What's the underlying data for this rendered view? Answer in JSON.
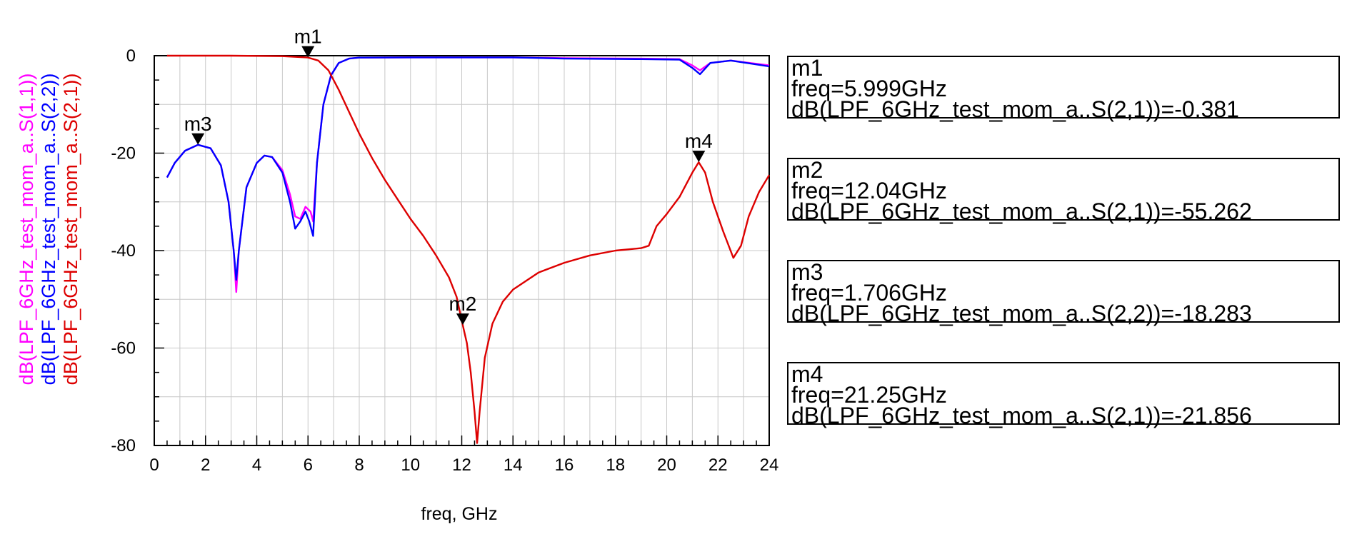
{
  "chart_data": {
    "type": "line",
    "xlabel": "freq, GHz",
    "ylabel": "",
    "xlim": [
      0,
      24
    ],
    "ylim": [
      -80,
      0
    ],
    "x_ticks": [
      0,
      2,
      4,
      6,
      8,
      10,
      12,
      14,
      16,
      18,
      20,
      22,
      24
    ],
    "y_ticks": [
      0,
      -20,
      -40,
      -60,
      -80
    ],
    "grid": true,
    "series": [
      {
        "name": "dB(LPF_6GHz_test_mom_a..S(1,1))",
        "color": "#ff00ff",
        "points": [
          [
            0.5,
            -25
          ],
          [
            0.8,
            -22
          ],
          [
            1.2,
            -19.5
          ],
          [
            1.706,
            -18.3
          ],
          [
            2.2,
            -19
          ],
          [
            2.6,
            -22.5
          ],
          [
            2.9,
            -30
          ],
          [
            3.1,
            -40
          ],
          [
            3.2,
            -48.5
          ],
          [
            3.3,
            -40
          ],
          [
            3.6,
            -27
          ],
          [
            4.0,
            -22
          ],
          [
            4.3,
            -20.5
          ],
          [
            4.6,
            -20.8
          ],
          [
            5.0,
            -23.5
          ],
          [
            5.3,
            -28.5
          ],
          [
            5.5,
            -33
          ],
          [
            5.7,
            -33.5
          ],
          [
            5.9,
            -31
          ],
          [
            6.1,
            -32
          ],
          [
            6.2,
            -34
          ],
          [
            6.35,
            -22
          ],
          [
            6.6,
            -10
          ],
          [
            6.9,
            -4
          ],
          [
            7.2,
            -1.5
          ],
          [
            7.6,
            -0.6
          ],
          [
            8,
            -0.4
          ],
          [
            10,
            -0.35
          ],
          [
            14,
            -0.35
          ],
          [
            16,
            -0.5
          ],
          [
            19,
            -0.6
          ],
          [
            20.5,
            -0.7
          ],
          [
            21,
            -2
          ],
          [
            21.3,
            -3
          ],
          [
            21.7,
            -1.5
          ],
          [
            22.5,
            -1
          ],
          [
            24,
            -2
          ]
        ]
      },
      {
        "name": "dB(LPF_6GHz_test_mom_a..S(2,2))",
        "color": "#0000ff",
        "points": [
          [
            0.5,
            -25
          ],
          [
            0.8,
            -22
          ],
          [
            1.2,
            -19.5
          ],
          [
            1.706,
            -18.283
          ],
          [
            2.2,
            -19
          ],
          [
            2.6,
            -22.5
          ],
          [
            2.9,
            -30
          ],
          [
            3.1,
            -40
          ],
          [
            3.2,
            -46
          ],
          [
            3.3,
            -40
          ],
          [
            3.6,
            -27
          ],
          [
            4.0,
            -22
          ],
          [
            4.3,
            -20.5
          ],
          [
            4.6,
            -20.8
          ],
          [
            5.0,
            -24
          ],
          [
            5.3,
            -30
          ],
          [
            5.5,
            -35.5
          ],
          [
            5.7,
            -34
          ],
          [
            5.9,
            -32
          ],
          [
            6.05,
            -34
          ],
          [
            6.2,
            -37
          ],
          [
            6.35,
            -22
          ],
          [
            6.6,
            -10
          ],
          [
            6.9,
            -4
          ],
          [
            7.2,
            -1.5
          ],
          [
            7.6,
            -0.6
          ],
          [
            8,
            -0.4
          ],
          [
            10,
            -0.35
          ],
          [
            14,
            -0.35
          ],
          [
            16,
            -0.6
          ],
          [
            19,
            -0.7
          ],
          [
            20.5,
            -0.8
          ],
          [
            21,
            -2.5
          ],
          [
            21.3,
            -3.8
          ],
          [
            21.7,
            -1.5
          ],
          [
            22.5,
            -1
          ],
          [
            24,
            -2.2
          ]
        ]
      },
      {
        "name": "dB(LPF_6GHz_test_mom_a..S(2,1))",
        "color": "#dd0000",
        "points": [
          [
            0.5,
            0
          ],
          [
            3,
            0
          ],
          [
            5,
            -0.1
          ],
          [
            5.999,
            -0.381
          ],
          [
            6.4,
            -1
          ],
          [
            6.8,
            -3
          ],
          [
            7.2,
            -7
          ],
          [
            7.6,
            -11.5
          ],
          [
            8.0,
            -16
          ],
          [
            8.5,
            -21
          ],
          [
            9,
            -25.5
          ],
          [
            9.5,
            -29.5
          ],
          [
            10,
            -33.5
          ],
          [
            10.5,
            -37
          ],
          [
            11,
            -41
          ],
          [
            11.5,
            -45.5
          ],
          [
            11.8,
            -49.5
          ],
          [
            12.04,
            -55.262
          ],
          [
            12.2,
            -59
          ],
          [
            12.35,
            -65
          ],
          [
            12.5,
            -73
          ],
          [
            12.6,
            -79.5
          ],
          [
            12.7,
            -73
          ],
          [
            12.9,
            -62
          ],
          [
            13.2,
            -55
          ],
          [
            13.6,
            -50.5
          ],
          [
            14,
            -48
          ],
          [
            15,
            -44.5
          ],
          [
            16,
            -42.5
          ],
          [
            17,
            -41
          ],
          [
            18,
            -40
          ],
          [
            19,
            -39.5
          ],
          [
            19.3,
            -39
          ],
          [
            19.6,
            -35
          ],
          [
            20,
            -32.5
          ],
          [
            20.5,
            -29
          ],
          [
            21,
            -24
          ],
          [
            21.25,
            -21.856
          ],
          [
            21.5,
            -24
          ],
          [
            21.8,
            -30
          ],
          [
            22.2,
            -36
          ],
          [
            22.6,
            -41.5
          ],
          [
            22.9,
            -39
          ],
          [
            23.2,
            -33
          ],
          [
            23.6,
            -28
          ],
          [
            24,
            -24.5
          ]
        ]
      }
    ],
    "markers": [
      {
        "name": "m1",
        "freq": "freq=5.999GHz",
        "value": "dB(LPF_6GHz_test_mom_a..S(2,1))=-0.381",
        "x": 5.999,
        "y": -0.381
      },
      {
        "name": "m2",
        "freq": "freq=12.04GHz",
        "value": "dB(LPF_6GHz_test_mom_a..S(2,1))=-55.262",
        "x": 12.04,
        "y": -55.262
      },
      {
        "name": "m3",
        "freq": "freq=1.706GHz",
        "value": "dB(LPF_6GHz_test_mom_a..S(2,2))=-18.283",
        "x": 1.706,
        "y": -18.283
      },
      {
        "name": "m4",
        "freq": "freq=21.25GHz",
        "value": "dB(LPF_6GHz_test_mom_a..S(2,1))=-21.856",
        "x": 21.25,
        "y": -21.856
      }
    ],
    "ylabels": [
      {
        "text": "dB(LPF_6GHz_test_mom_a..S(1,1))",
        "color": "#ff00ff"
      },
      {
        "text": "dB(LPF_6GHz_test_mom_a..S(2,2))",
        "color": "#0000ff"
      },
      {
        "text": "dB(LPF_6GHz_test_mom_a..S(2,1))",
        "color": "#dd0000"
      }
    ]
  }
}
